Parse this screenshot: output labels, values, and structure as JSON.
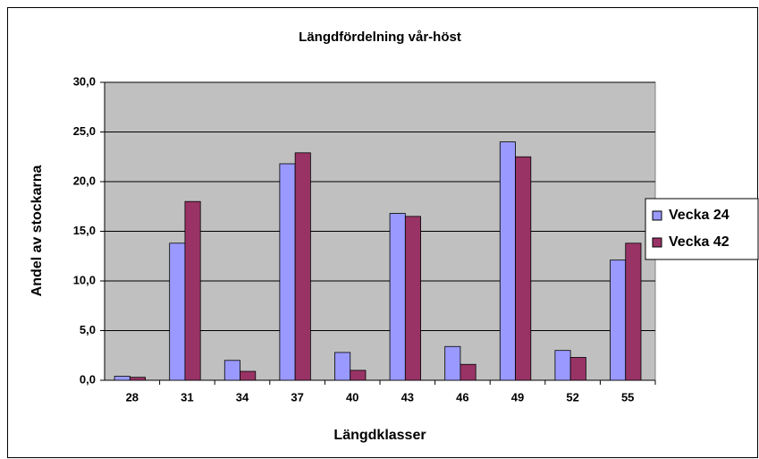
{
  "chart_data": {
    "type": "bar",
    "title": "Längdfördelning vår-höst",
    "x_label": "Längdklasser",
    "y_label": "Andel av stockarna",
    "categories": [
      "28",
      "31",
      "34",
      "37",
      "40",
      "43",
      "46",
      "49",
      "52",
      "55"
    ],
    "series": [
      {
        "name": "Vecka 24",
        "color": "#9999ff",
        "values": [
          0.4,
          13.8,
          2.0,
          21.8,
          2.8,
          16.8,
          3.4,
          24.0,
          3.0,
          12.1
        ]
      },
      {
        "name": "Vecka 42",
        "color": "#993366",
        "values": [
          0.3,
          18.0,
          0.9,
          22.9,
          1.0,
          16.5,
          1.6,
          22.5,
          2.3,
          13.8
        ]
      }
    ],
    "ylim": [
      0,
      30
    ],
    "yticks": [
      {
        "value": 0,
        "label": "0,0"
      },
      {
        "value": 5,
        "label": "5,0"
      },
      {
        "value": 10,
        "label": "10,0"
      },
      {
        "value": 15,
        "label": "15,0"
      },
      {
        "value": 20,
        "label": "20,0"
      },
      {
        "value": 25,
        "label": "25,0"
      },
      {
        "value": 30,
        "label": "30,0"
      }
    ],
    "grid": true,
    "legend": "right",
    "plot_background": "#c0c0c0"
  }
}
